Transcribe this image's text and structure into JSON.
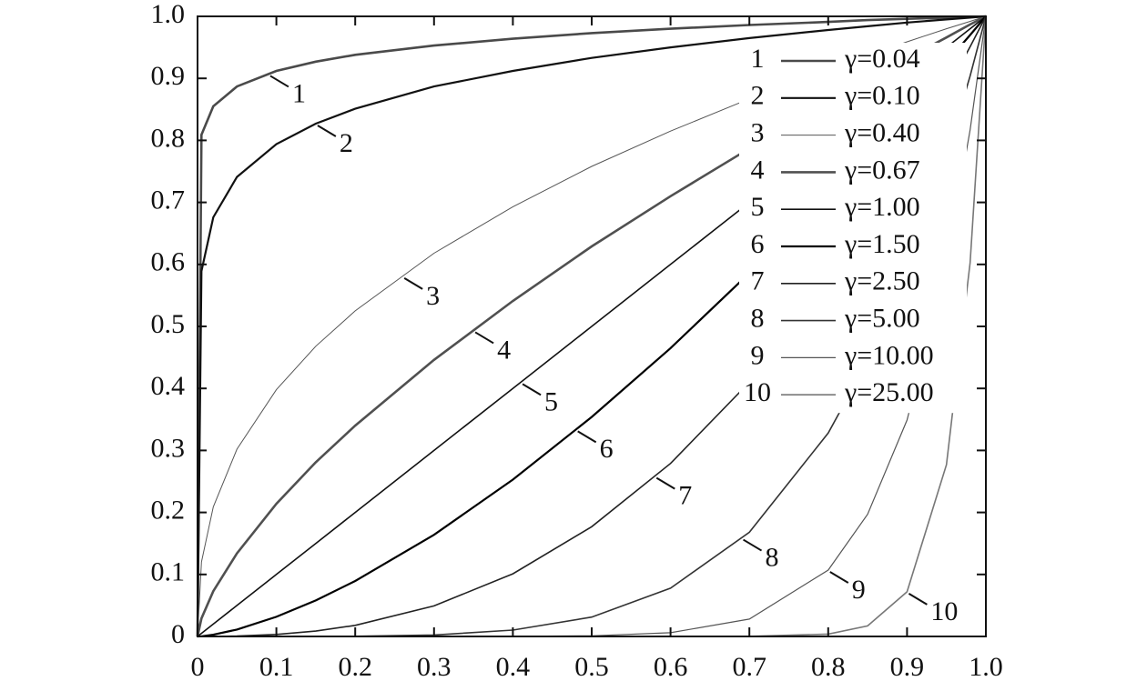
{
  "chart_data": {
    "type": "line",
    "x": [
      0,
      0.005,
      0.02,
      0.05,
      0.1,
      0.15,
      0.2,
      0.3,
      0.4,
      0.5,
      0.6,
      0.7,
      0.8,
      0.85,
      0.9,
      0.95,
      0.98,
      1
    ],
    "series": [
      {
        "label": "1",
        "name": "γ=0.04",
        "color": "#4a4a4a",
        "values": [
          0,
          0.809,
          0.855,
          0.887,
          0.912,
          0.927,
          0.938,
          0.953,
          0.964,
          0.973,
          0.98,
          0.986,
          0.991,
          0.994,
          0.996,
          0.998,
          0.999,
          1
        ]
      },
      {
        "label": "2",
        "name": "γ=0.10",
        "color": "#111111",
        "values": [
          0,
          0.589,
          0.676,
          0.741,
          0.794,
          0.827,
          0.851,
          0.887,
          0.912,
          0.933,
          0.95,
          0.965,
          0.978,
          0.984,
          0.99,
          0.995,
          0.998,
          1
        ]
      },
      {
        "label": "3",
        "name": "γ=0.40",
        "color": "#555555",
        "values": [
          0,
          0.12,
          0.209,
          0.302,
          0.398,
          0.468,
          0.525,
          0.618,
          0.693,
          0.758,
          0.815,
          0.867,
          0.915,
          0.937,
          0.959,
          0.98,
          0.992,
          1
        ]
      },
      {
        "label": "4",
        "name": "γ=0.67",
        "color": "#505050",
        "values": [
          0,
          0.029,
          0.073,
          0.134,
          0.214,
          0.281,
          0.34,
          0.446,
          0.541,
          0.629,
          0.71,
          0.787,
          0.861,
          0.897,
          0.932,
          0.966,
          0.987,
          1
        ]
      },
      {
        "label": "5",
        "name": "γ=1.00",
        "color": "#111111",
        "values": [
          0,
          0.005,
          0.02,
          0.05,
          0.1,
          0.15,
          0.2,
          0.3,
          0.4,
          0.5,
          0.6,
          0.7,
          0.8,
          0.85,
          0.9,
          0.95,
          0.98,
          1
        ]
      },
      {
        "label": "6",
        "name": "γ=1.50",
        "color": "#000000",
        "values": [
          0,
          0.00035,
          0.0028,
          0.0112,
          0.0316,
          0.0581,
          0.0894,
          0.164,
          0.253,
          0.354,
          0.465,
          0.586,
          0.716,
          0.784,
          0.854,
          0.926,
          0.97,
          1
        ]
      },
      {
        "label": "7",
        "name": "γ=2.50",
        "color": "#222222",
        "values": [
          0,
          0,
          6e-05,
          0.00056,
          0.0032,
          0.0087,
          0.0179,
          0.0493,
          0.101,
          0.177,
          0.279,
          0.41,
          0.572,
          0.666,
          0.768,
          0.88,
          0.951,
          1
        ]
      },
      {
        "label": "8",
        "name": "γ=5.00",
        "color": "#333333",
        "values": [
          0,
          0,
          0,
          0,
          1e-05,
          8e-05,
          0.0003,
          0.0024,
          0.0102,
          0.0313,
          0.0778,
          0.168,
          0.328,
          0.444,
          0.59,
          0.774,
          0.904,
          1
        ]
      },
      {
        "label": "9",
        "name": "γ=10.00",
        "color": "#555555",
        "values": [
          0,
          0,
          0,
          0,
          0,
          0,
          0,
          0,
          0.0001,
          0.001,
          0.006,
          0.028,
          0.107,
          0.197,
          0.349,
          0.599,
          0.817,
          1
        ]
      },
      {
        "label": "10",
        "name": "γ=25.00",
        "color": "#777777",
        "values": [
          0,
          0,
          0,
          0,
          0,
          0,
          0,
          0,
          0,
          0,
          0,
          0.0001,
          0.0038,
          0.017,
          0.072,
          0.277,
          0.603,
          1
        ]
      }
    ],
    "xlim": [
      0,
      1
    ],
    "ylim": [
      0,
      1
    ],
    "xticks": [
      0,
      0.1,
      0.2,
      0.3,
      0.4,
      0.5,
      0.6,
      0.7,
      0.8,
      0.9,
      {
        "value": 1,
        "label": "1.0"
      }
    ],
    "yticks": [
      0,
      0.1,
      0.2,
      0.3,
      0.4,
      0.5,
      0.6,
      0.7,
      0.8,
      0.9,
      {
        "value": 1,
        "label": "1.0"
      }
    ],
    "legend": "upper right"
  }
}
